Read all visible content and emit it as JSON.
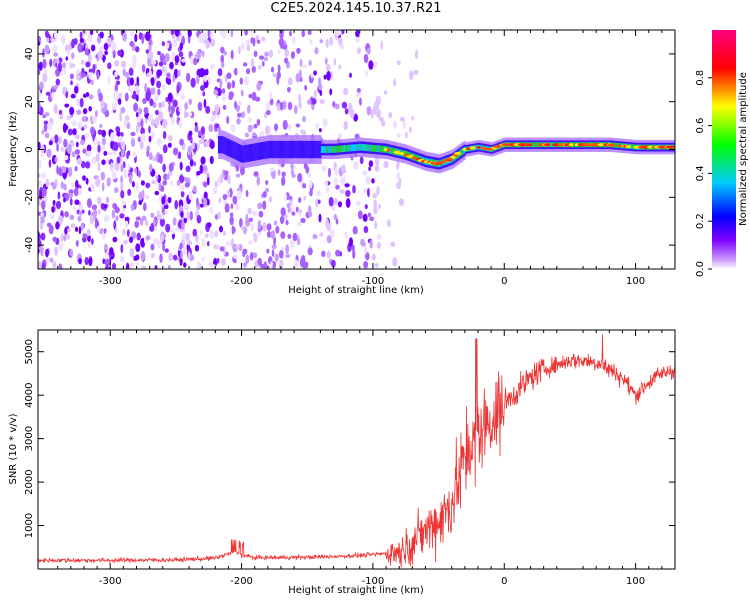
{
  "title": "C2E5.2024.145.10.37.R21",
  "chart_data": [
    {
      "type": "heatmap",
      "title": "",
      "xlabel": "Height of straight line (km)",
      "ylabel": "Frequency (Hz)",
      "xlim": [
        -355,
        130
      ],
      "ylim": [
        -50,
        50
      ],
      "xticks": [
        -300,
        -200,
        -100,
        0,
        100
      ],
      "yticks": [
        -40,
        -20,
        0,
        20,
        40
      ],
      "noise_region_x": [
        -355,
        -85
      ],
      "signal_ridge": {
        "x": [
          -215,
          -200,
          -180,
          -150,
          -130,
          -110,
          -90,
          -75,
          -60,
          -50,
          -40,
          -30,
          -20,
          -10,
          0,
          20,
          40,
          60,
          80,
          100,
          130
        ],
        "y": [
          2,
          -2,
          0,
          0,
          0,
          1,
          0,
          -2,
          -5,
          -6,
          -4,
          0,
          1,
          0,
          2,
          2,
          2,
          2,
          2,
          1,
          1
        ]
      },
      "colorbar": {
        "label": "Normalized spectral amplitude",
        "range": [
          0,
          1
        ],
        "ticks": [
          0.0,
          0.2,
          0.4,
          0.6,
          0.8
        ],
        "colors": [
          "#ffffff",
          "#8000ff",
          "#0000ff",
          "#00ccff",
          "#00ff00",
          "#ffff00",
          "#ff0000",
          "#ff0080"
        ]
      }
    },
    {
      "type": "line",
      "title": "",
      "xlabel": "Height of straight line (km)",
      "ylabel": "SNR (10 * v/v)",
      "xlim": [
        -355,
        130
      ],
      "ylim": [
        0,
        5500
      ],
      "xticks": [
        -300,
        -200,
        -100,
        0,
        100
      ],
      "yticks": [
        1000,
        2000,
        3000,
        4000,
        5000
      ],
      "series": [
        {
          "color": "#ee3333",
          "x": [
            -355,
            -300,
            -250,
            -220,
            -205,
            -200,
            -190,
            -150,
            -120,
            -100,
            -80,
            -70,
            -60,
            -50,
            -40,
            -35,
            -30,
            -25,
            -20,
            -15,
            -10,
            -5,
            0,
            10,
            20,
            30,
            40,
            50,
            60,
            70,
            80,
            90,
            100,
            110,
            120,
            130
          ],
          "y": [
            200,
            200,
            210,
            250,
            400,
            320,
            260,
            270,
            300,
            330,
            400,
            600,
            900,
            1100,
            1500,
            2000,
            2500,
            2800,
            3000,
            3200,
            3400,
            3500,
            3800,
            4100,
            4400,
            4600,
            4700,
            4800,
            4800,
            4750,
            4600,
            4400,
            4000,
            4300,
            4500,
            4600
          ]
        }
      ]
    }
  ]
}
